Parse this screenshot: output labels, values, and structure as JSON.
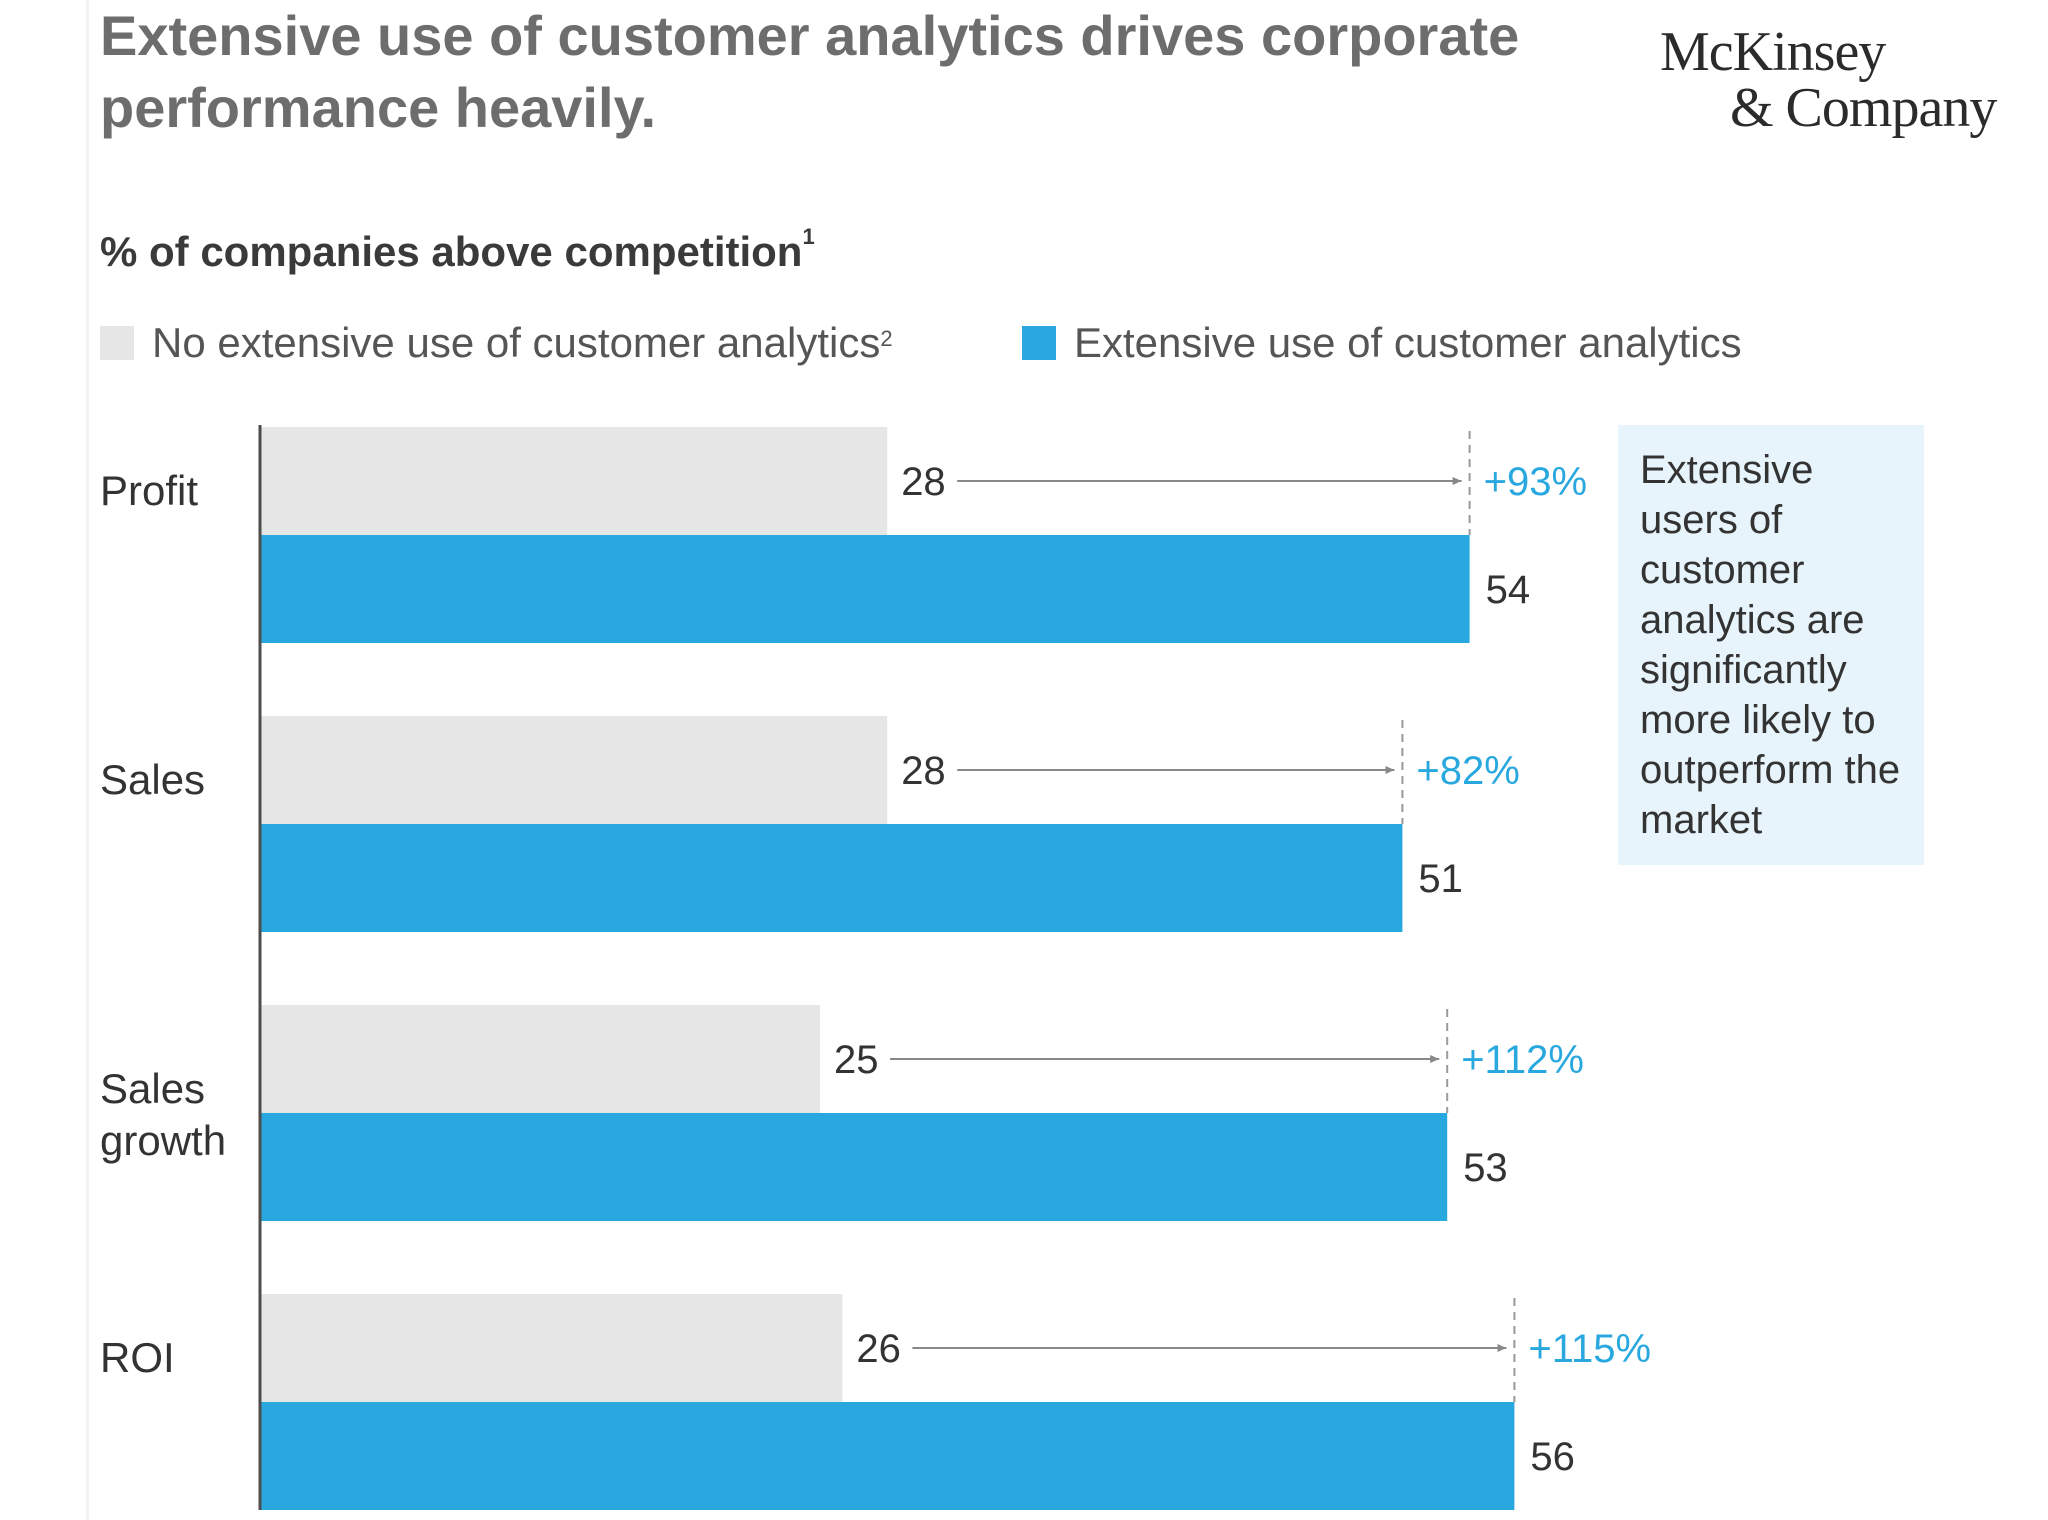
{
  "title": "Extensive use of customer analytics drives corporate\nperformance heavily.",
  "logo": {
    "line1": "McKinsey",
    "line2": "& Company"
  },
  "subtitle": {
    "text": "% of companies above competition",
    "footnote": "1"
  },
  "legend": [
    {
      "label": "No extensive use of customer analytics",
      "footnote": "2",
      "color": "#e6e6e6"
    },
    {
      "label": "Extensive use of customer analytics",
      "footnote": "",
      "color": "#29a8df"
    }
  ],
  "callout": "Extensive users of customer analytics are significantly more likely to outperform the market",
  "chart_data": {
    "type": "bar",
    "orientation": "horizontal",
    "categories": [
      "Profit",
      "Sales",
      "Sales growth",
      "ROI"
    ],
    "series": [
      {
        "name": "No extensive use of customer analytics",
        "values": [
          28,
          28,
          25,
          26
        ],
        "color": "#e6e6e6"
      },
      {
        "name": "Extensive use of customer analytics",
        "values": [
          54,
          51,
          53,
          56
        ],
        "color": "#29a8df"
      }
    ],
    "uplift_labels": [
      "+93%",
      "+82%",
      "+112%",
      "+115%"
    ],
    "annotation_color": "#29a8df"
  }
}
